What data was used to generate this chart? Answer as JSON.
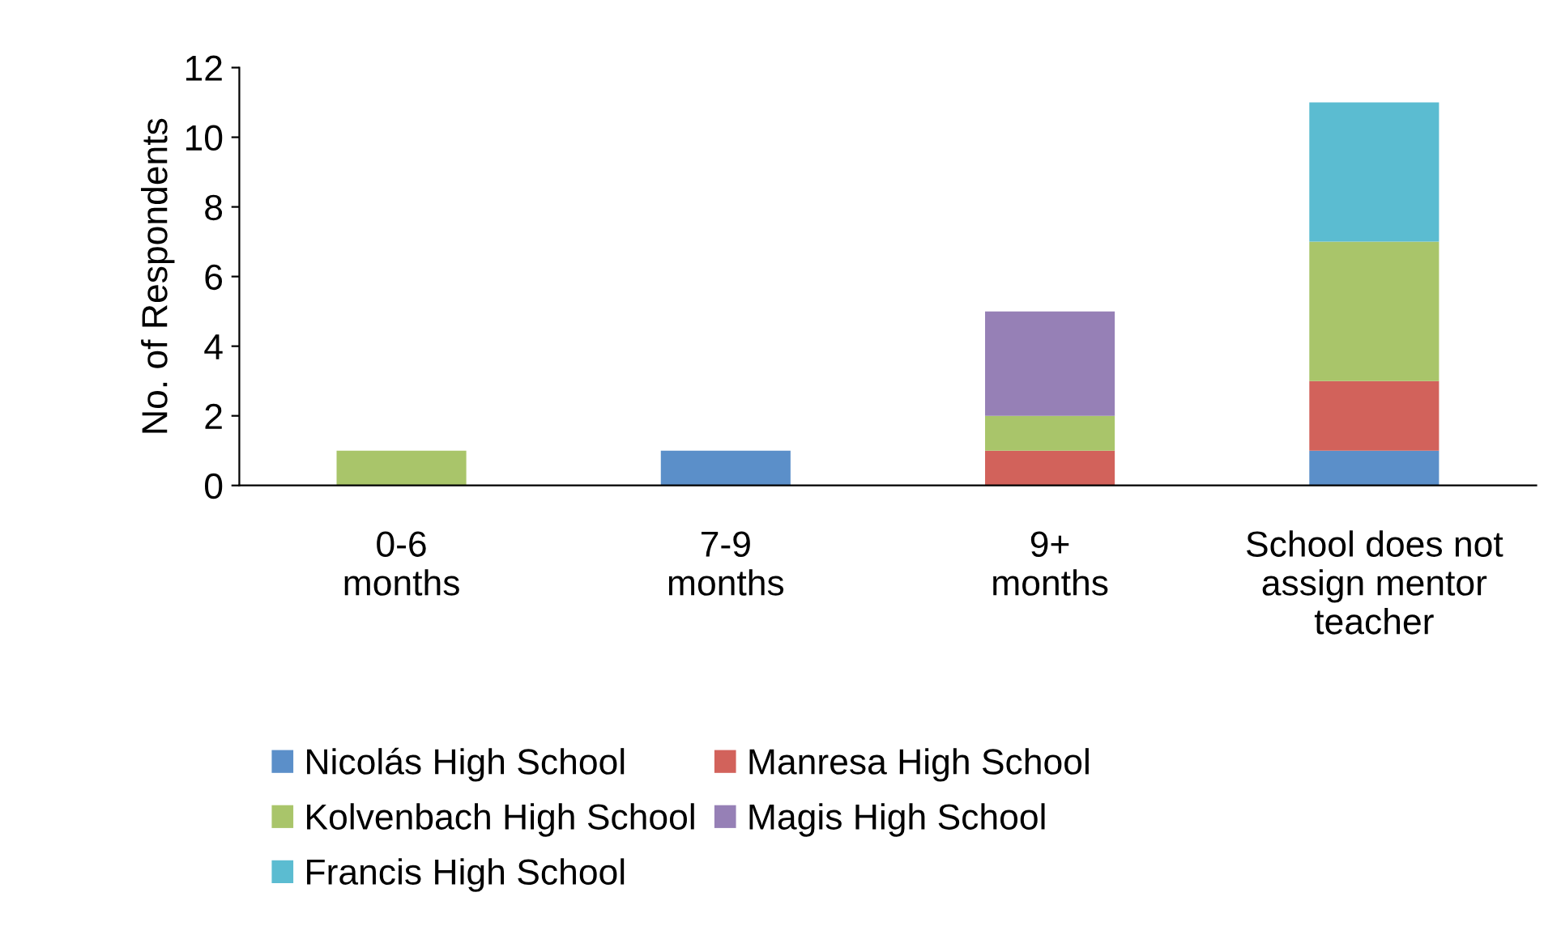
{
  "chart_data": {
    "type": "bar",
    "stacked": true,
    "ylabel": "No. of Respondents",
    "categories": [
      "0-6\nmonths",
      "7-9\nmonths",
      "9+\nmonths",
      "School does not\nassign mentor\nteacher"
    ],
    "series": [
      {
        "name": "Nicolás High School",
        "color": "#5b8fc9",
        "values": [
          0,
          1,
          0,
          1
        ]
      },
      {
        "name": "Manresa High School",
        "color": "#d2625b",
        "values": [
          0,
          0,
          1,
          2
        ]
      },
      {
        "name": "Kolvenbach High School",
        "color": "#a9c56a",
        "values": [
          1,
          0,
          1,
          4
        ]
      },
      {
        "name": "Magis High School",
        "color": "#9680b6",
        "values": [
          0,
          0,
          3,
          0
        ]
      },
      {
        "name": "Francis High School",
        "color": "#5bbcd1",
        "values": [
          0,
          0,
          0,
          4
        ]
      }
    ],
    "ylim": [
      0,
      12
    ],
    "yticks": [
      0,
      2,
      4,
      6,
      8,
      10,
      12
    ],
    "grid": false,
    "legend": "bottom"
  }
}
